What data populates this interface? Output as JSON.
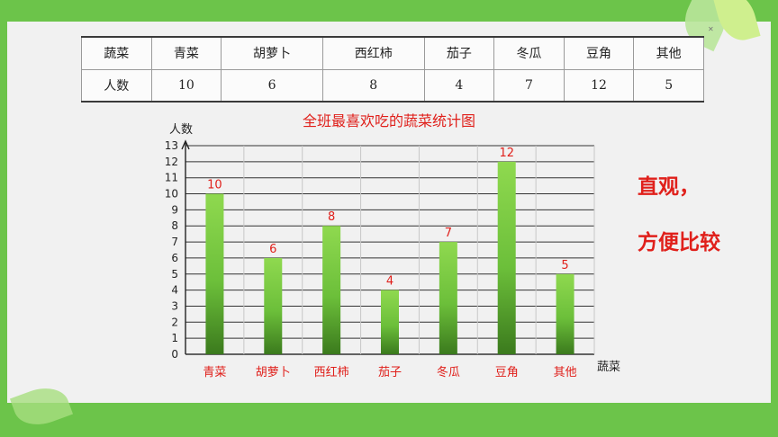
{
  "table": {
    "row1": [
      "蔬菜",
      "青菜",
      "胡萝卜",
      "西红柿",
      "茄子",
      "冬瓜",
      "豆角",
      "其他"
    ],
    "row2": [
      "人数",
      "10",
      "6",
      "8",
      "4",
      "7",
      "12",
      "5"
    ]
  },
  "chart_data": {
    "type": "bar",
    "title": "全班最喜欢吃的蔬菜统计图",
    "xlabel": "蔬菜",
    "ylabel": "人数",
    "categories": [
      "青菜",
      "胡萝卜",
      "西红柿",
      "茄子",
      "冬瓜",
      "豆角",
      "其他"
    ],
    "values": [
      10,
      6,
      8,
      4,
      7,
      12,
      5
    ],
    "ylim": [
      0,
      13
    ],
    "yticks": [
      0,
      1,
      2,
      3,
      4,
      5,
      6,
      7,
      8,
      9,
      10,
      11,
      12,
      13
    ],
    "grid": true,
    "bar_color": "#6cbf3a",
    "label_color": "#e0201b"
  },
  "note": {
    "line1": "直观，",
    "line2": "方便比较"
  }
}
